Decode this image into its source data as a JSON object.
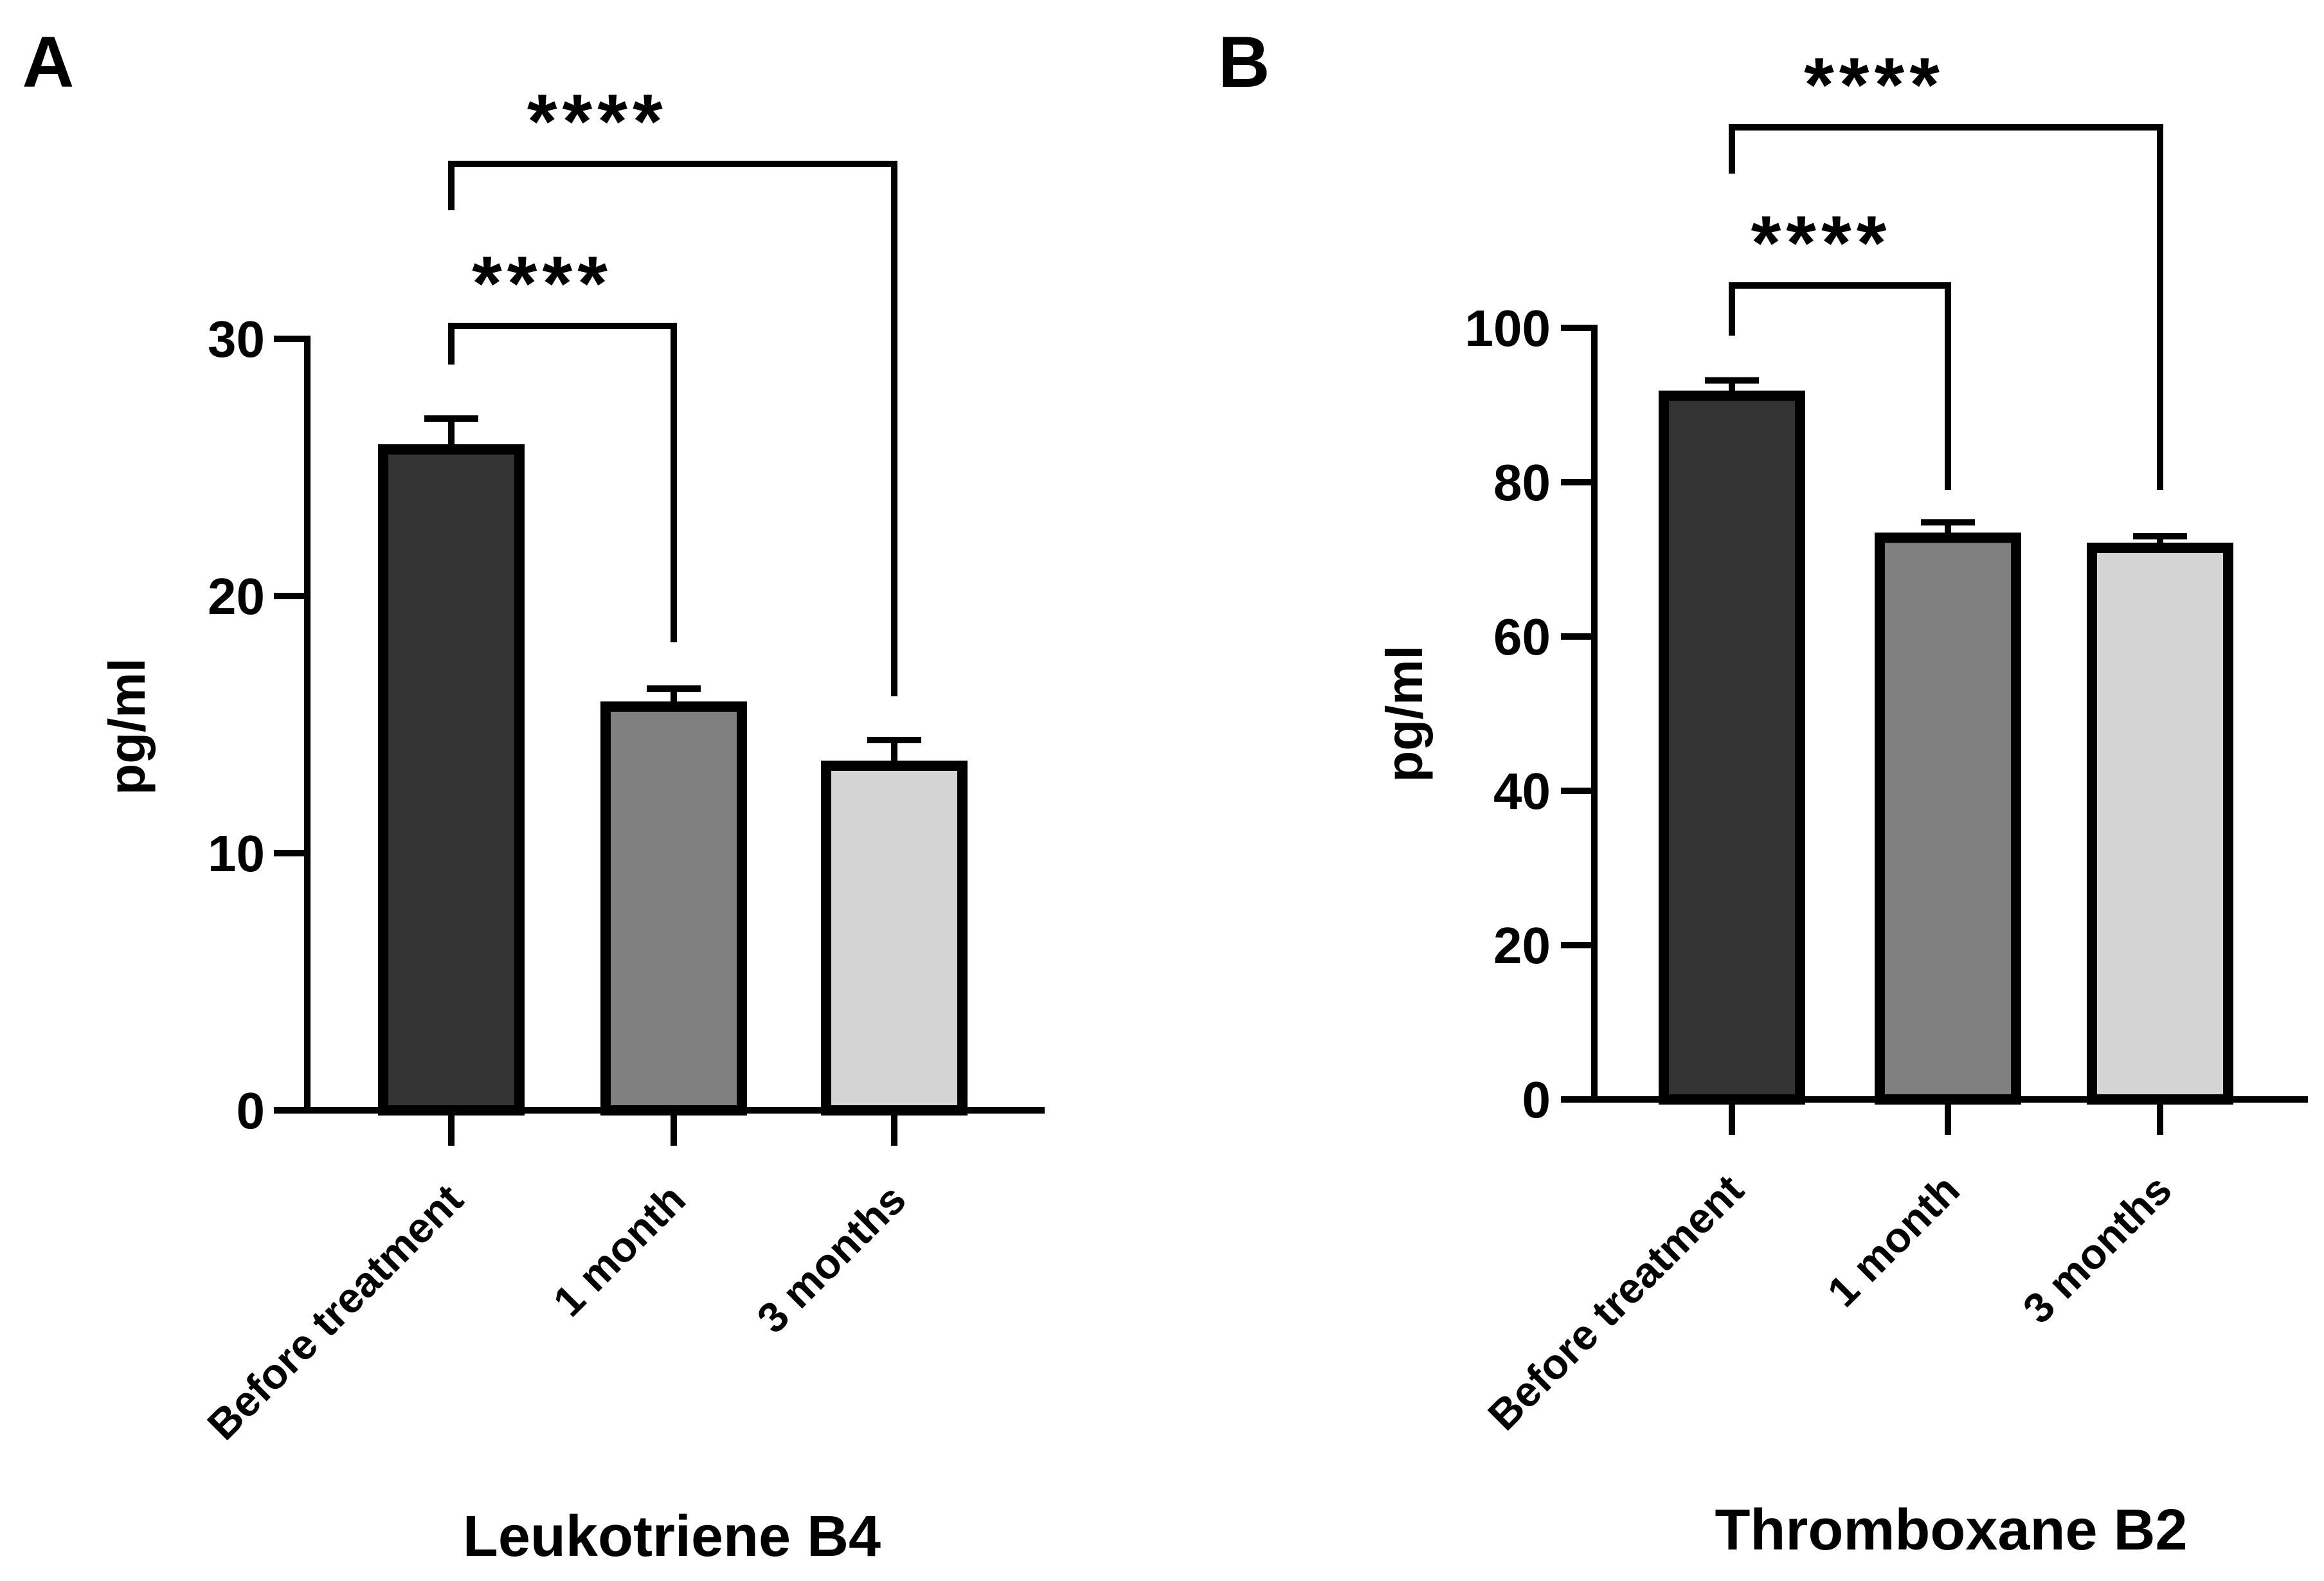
{
  "figure": {
    "panels": [
      "A",
      "B"
    ]
  },
  "chart_data": [
    {
      "panel_label": "A",
      "type": "bar",
      "title": "Leukotriene B4",
      "xlabel": "Leukotriene B4",
      "ylabel": "pg/ml",
      "categories": [
        "Before treatment",
        "1 month",
        "3 months"
      ],
      "values": [
        25.7,
        15.7,
        13.4
      ],
      "errors": [
        1.2,
        0.7,
        1.0
      ],
      "colors": [
        "#333333",
        "#808080",
        "#d4d4d4"
      ],
      "ylim": [
        0,
        30
      ],
      "yticks": [
        0,
        10,
        20,
        30
      ],
      "grid": false,
      "significance": [
        {
          "from": 0,
          "to": 1,
          "label": "****",
          "top": 30.5,
          "left_end": 29.0,
          "right_end": 18.2
        },
        {
          "from": 0,
          "to": 2,
          "label": "****",
          "top": 36.8,
          "left_end": 35.0,
          "right_end": 16.1
        }
      ]
    },
    {
      "panel_label": "B",
      "type": "bar",
      "title": "Thromboxane B2",
      "xlabel": "Thromboxane B2",
      "ylabel": "pg/ml",
      "categories": [
        "Before treatment",
        "1 month",
        "3 months"
      ],
      "values": [
        91.2,
        72.8,
        71.5
      ],
      "errors": [
        2.0,
        2.0,
        1.5
      ],
      "colors": [
        "#333333",
        "#808080",
        "#d4d4d4"
      ],
      "ylim": [
        0,
        100
      ],
      "yticks": [
        0,
        20,
        40,
        60,
        80,
        100
      ],
      "grid": false,
      "significance": [
        {
          "from": 0,
          "to": 1,
          "label": "****",
          "top": 105.5,
          "left_end": 99.0,
          "right_end": 79.0
        },
        {
          "from": 0,
          "to": 2,
          "label": "****",
          "top": 126.0,
          "left_end": 120.0,
          "right_end": 79.0
        }
      ]
    }
  ]
}
